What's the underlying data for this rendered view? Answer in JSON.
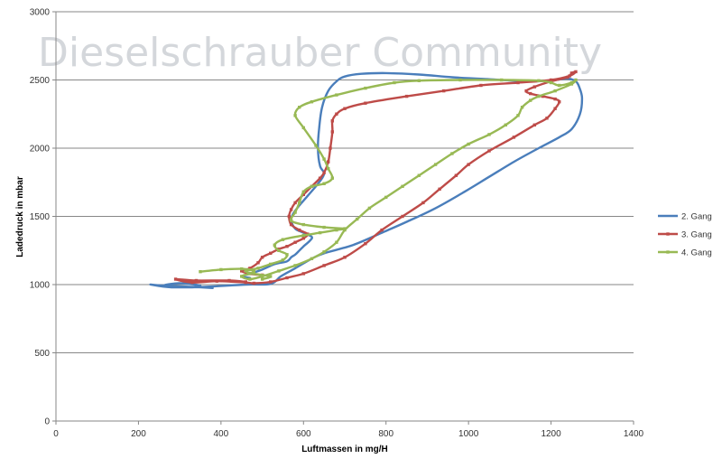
{
  "watermark": "Dieselschrauber Community",
  "chart_data": {
    "type": "line",
    "xlabel": "Luftmassen in mg/H",
    "ylabel": "Ladedruck in mbar",
    "xlim": [
      0,
      1400
    ],
    "ylim": [
      0,
      3000
    ],
    "xticks": [
      0,
      200,
      400,
      600,
      800,
      1000,
      1200,
      1400
    ],
    "yticks": [
      0,
      500,
      1000,
      1500,
      2000,
      2500,
      3000
    ],
    "grid": "horizontal",
    "legend_position": "right",
    "series": [
      {
        "name": "2. Gang",
        "color": "#4a7ebb",
        "markers": false,
        "points": [
          [
            380,
            975
          ],
          [
            320,
            985
          ],
          [
            250,
            995
          ],
          [
            230,
            1000
          ],
          [
            280,
            980
          ],
          [
            350,
            990
          ],
          [
            300,
            1010
          ],
          [
            260,
            990
          ],
          [
            330,
            980
          ],
          [
            460,
            1000
          ],
          [
            520,
            1005
          ],
          [
            545,
            1060
          ],
          [
            580,
            1120
          ],
          [
            620,
            1190
          ],
          [
            650,
            1230
          ],
          [
            720,
            1290
          ],
          [
            790,
            1380
          ],
          [
            850,
            1460
          ],
          [
            920,
            1560
          ],
          [
            990,
            1680
          ],
          [
            1050,
            1790
          ],
          [
            1110,
            1900
          ],
          [
            1170,
            2000
          ],
          [
            1220,
            2080
          ],
          [
            1250,
            2140
          ],
          [
            1270,
            2250
          ],
          [
            1275,
            2370
          ],
          [
            1268,
            2450
          ],
          [
            1260,
            2490
          ],
          [
            1240,
            2510
          ],
          [
            1210,
            2500
          ],
          [
            1150,
            2490
          ],
          [
            1050,
            2505
          ],
          [
            960,
            2520
          ],
          [
            880,
            2540
          ],
          [
            800,
            2550
          ],
          [
            740,
            2545
          ],
          [
            700,
            2525
          ],
          [
            680,
            2490
          ],
          [
            660,
            2420
          ],
          [
            645,
            2300
          ],
          [
            638,
            2150
          ],
          [
            635,
            2000
          ],
          [
            640,
            1870
          ],
          [
            650,
            1820
          ],
          [
            645,
            1780
          ],
          [
            630,
            1720
          ],
          [
            610,
            1650
          ],
          [
            590,
            1580
          ],
          [
            575,
            1520
          ],
          [
            570,
            1470
          ],
          [
            580,
            1410
          ],
          [
            600,
            1380
          ],
          [
            620,
            1350
          ],
          [
            615,
            1320
          ],
          [
            600,
            1280
          ],
          [
            590,
            1250
          ],
          [
            580,
            1220
          ],
          [
            570,
            1200
          ],
          [
            560,
            1170
          ],
          [
            530,
            1150
          ],
          [
            500,
            1110
          ],
          [
            470,
            1080
          ],
          [
            450,
            1060
          ],
          [
            470,
            1050
          ]
        ]
      },
      {
        "name": "3. Gang",
        "color": "#be4b48",
        "markers": true,
        "points": [
          [
            460,
            1020
          ],
          [
            420,
            1030
          ],
          [
            340,
            1030
          ],
          [
            290,
            1040
          ],
          [
            330,
            1015
          ],
          [
            390,
            1025
          ],
          [
            460,
            1015
          ],
          [
            480,
            1010
          ],
          [
            520,
            1020
          ],
          [
            560,
            1050
          ],
          [
            600,
            1080
          ],
          [
            650,
            1140
          ],
          [
            700,
            1200
          ],
          [
            750,
            1300
          ],
          [
            790,
            1400
          ],
          [
            840,
            1500
          ],
          [
            890,
            1600
          ],
          [
            930,
            1700
          ],
          [
            970,
            1800
          ],
          [
            1000,
            1880
          ],
          [
            1050,
            1980
          ],
          [
            1110,
            2080
          ],
          [
            1160,
            2170
          ],
          [
            1190,
            2220
          ],
          [
            1210,
            2290
          ],
          [
            1220,
            2340
          ],
          [
            1210,
            2360
          ],
          [
            1180,
            2380
          ],
          [
            1150,
            2400
          ],
          [
            1140,
            2420
          ],
          [
            1160,
            2450
          ],
          [
            1200,
            2490
          ],
          [
            1240,
            2520
          ],
          [
            1250,
            2550
          ],
          [
            1260,
            2560
          ],
          [
            1245,
            2530
          ],
          [
            1200,
            2500
          ],
          [
            1120,
            2480
          ],
          [
            1030,
            2460
          ],
          [
            940,
            2420
          ],
          [
            850,
            2380
          ],
          [
            750,
            2330
          ],
          [
            700,
            2290
          ],
          [
            680,
            2250
          ],
          [
            670,
            2200
          ],
          [
            670,
            2120
          ],
          [
            665,
            2000
          ],
          [
            660,
            1900
          ],
          [
            650,
            1820
          ],
          [
            640,
            1780
          ],
          [
            620,
            1720
          ],
          [
            600,
            1660
          ],
          [
            580,
            1600
          ],
          [
            570,
            1550
          ],
          [
            565,
            1500
          ],
          [
            570,
            1440
          ],
          [
            590,
            1400
          ],
          [
            610,
            1370
          ],
          [
            600,
            1340
          ],
          [
            580,
            1310
          ],
          [
            560,
            1280
          ],
          [
            540,
            1260
          ],
          [
            520,
            1230
          ],
          [
            500,
            1200
          ],
          [
            490,
            1160
          ],
          [
            470,
            1120
          ],
          [
            450,
            1100
          ],
          [
            470,
            1080
          ],
          [
            500,
            1070
          ]
        ]
      },
      {
        "name": "4. Gang",
        "color": "#98b954",
        "markers": true,
        "points": [
          [
            350,
            1095
          ],
          [
            400,
            1110
          ],
          [
            450,
            1115
          ],
          [
            480,
            1100
          ],
          [
            470,
            1080
          ],
          [
            450,
            1060
          ],
          [
            470,
            1040
          ],
          [
            500,
            1060
          ],
          [
            540,
            1100
          ],
          [
            580,
            1140
          ],
          [
            620,
            1190
          ],
          [
            650,
            1240
          ],
          [
            680,
            1310
          ],
          [
            700,
            1400
          ],
          [
            730,
            1480
          ],
          [
            760,
            1560
          ],
          [
            800,
            1640
          ],
          [
            840,
            1720
          ],
          [
            880,
            1800
          ],
          [
            920,
            1880
          ],
          [
            960,
            1960
          ],
          [
            1000,
            2030
          ],
          [
            1050,
            2100
          ],
          [
            1090,
            2170
          ],
          [
            1120,
            2240
          ],
          [
            1130,
            2300
          ],
          [
            1150,
            2350
          ],
          [
            1170,
            2380
          ],
          [
            1210,
            2420
          ],
          [
            1250,
            2470
          ],
          [
            1260,
            2500
          ],
          [
            1250,
            2480
          ],
          [
            1220,
            2460
          ],
          [
            1200,
            2480
          ],
          [
            1170,
            2495
          ],
          [
            1080,
            2500
          ],
          [
            980,
            2500
          ],
          [
            880,
            2495
          ],
          [
            820,
            2480
          ],
          [
            750,
            2440
          ],
          [
            680,
            2390
          ],
          [
            620,
            2340
          ],
          [
            590,
            2300
          ],
          [
            580,
            2240
          ],
          [
            600,
            2150
          ],
          [
            630,
            2020
          ],
          [
            650,
            1920
          ],
          [
            660,
            1850
          ],
          [
            670,
            1780
          ],
          [
            650,
            1740
          ],
          [
            620,
            1720
          ],
          [
            600,
            1680
          ],
          [
            590,
            1600
          ],
          [
            580,
            1530
          ],
          [
            570,
            1470
          ],
          [
            600,
            1440
          ],
          [
            650,
            1420
          ],
          [
            700,
            1410
          ],
          [
            680,
            1400
          ],
          [
            640,
            1380
          ],
          [
            600,
            1360
          ],
          [
            550,
            1330
          ],
          [
            530,
            1290
          ],
          [
            540,
            1250
          ],
          [
            560,
            1220
          ],
          [
            550,
            1180
          ],
          [
            520,
            1150
          ],
          [
            490,
            1120
          ],
          [
            460,
            1100
          ],
          [
            480,
            1080
          ],
          [
            520,
            1060
          ],
          [
            500,
            1040
          ]
        ]
      }
    ]
  }
}
